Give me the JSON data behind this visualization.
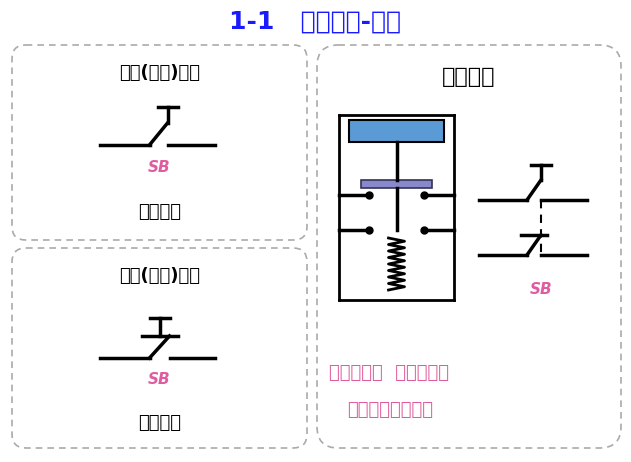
{
  "title": "1-1   控制器件-按钮",
  "title_color": "#1a1aff",
  "title_fontsize": 18,
  "bg_color": "#ffffff",
  "text_color": "#000000",
  "pink_color": "#e05ca0",
  "blue_rect_color": "#5b9bd5",
  "box1_title": "常开(动合)按钮",
  "box1_sb": "SB",
  "box1_label": "电路符号",
  "box2_title": "常闭(动断)按钮",
  "box2_sb": "SB",
  "box2_label": "电路符号",
  "box3_title": "复合按钮",
  "box3_sb": "SB",
  "box3_desc1": "复合按钮：  常开按钮和",
  "box3_desc2": "常闭按钮做在一起"
}
